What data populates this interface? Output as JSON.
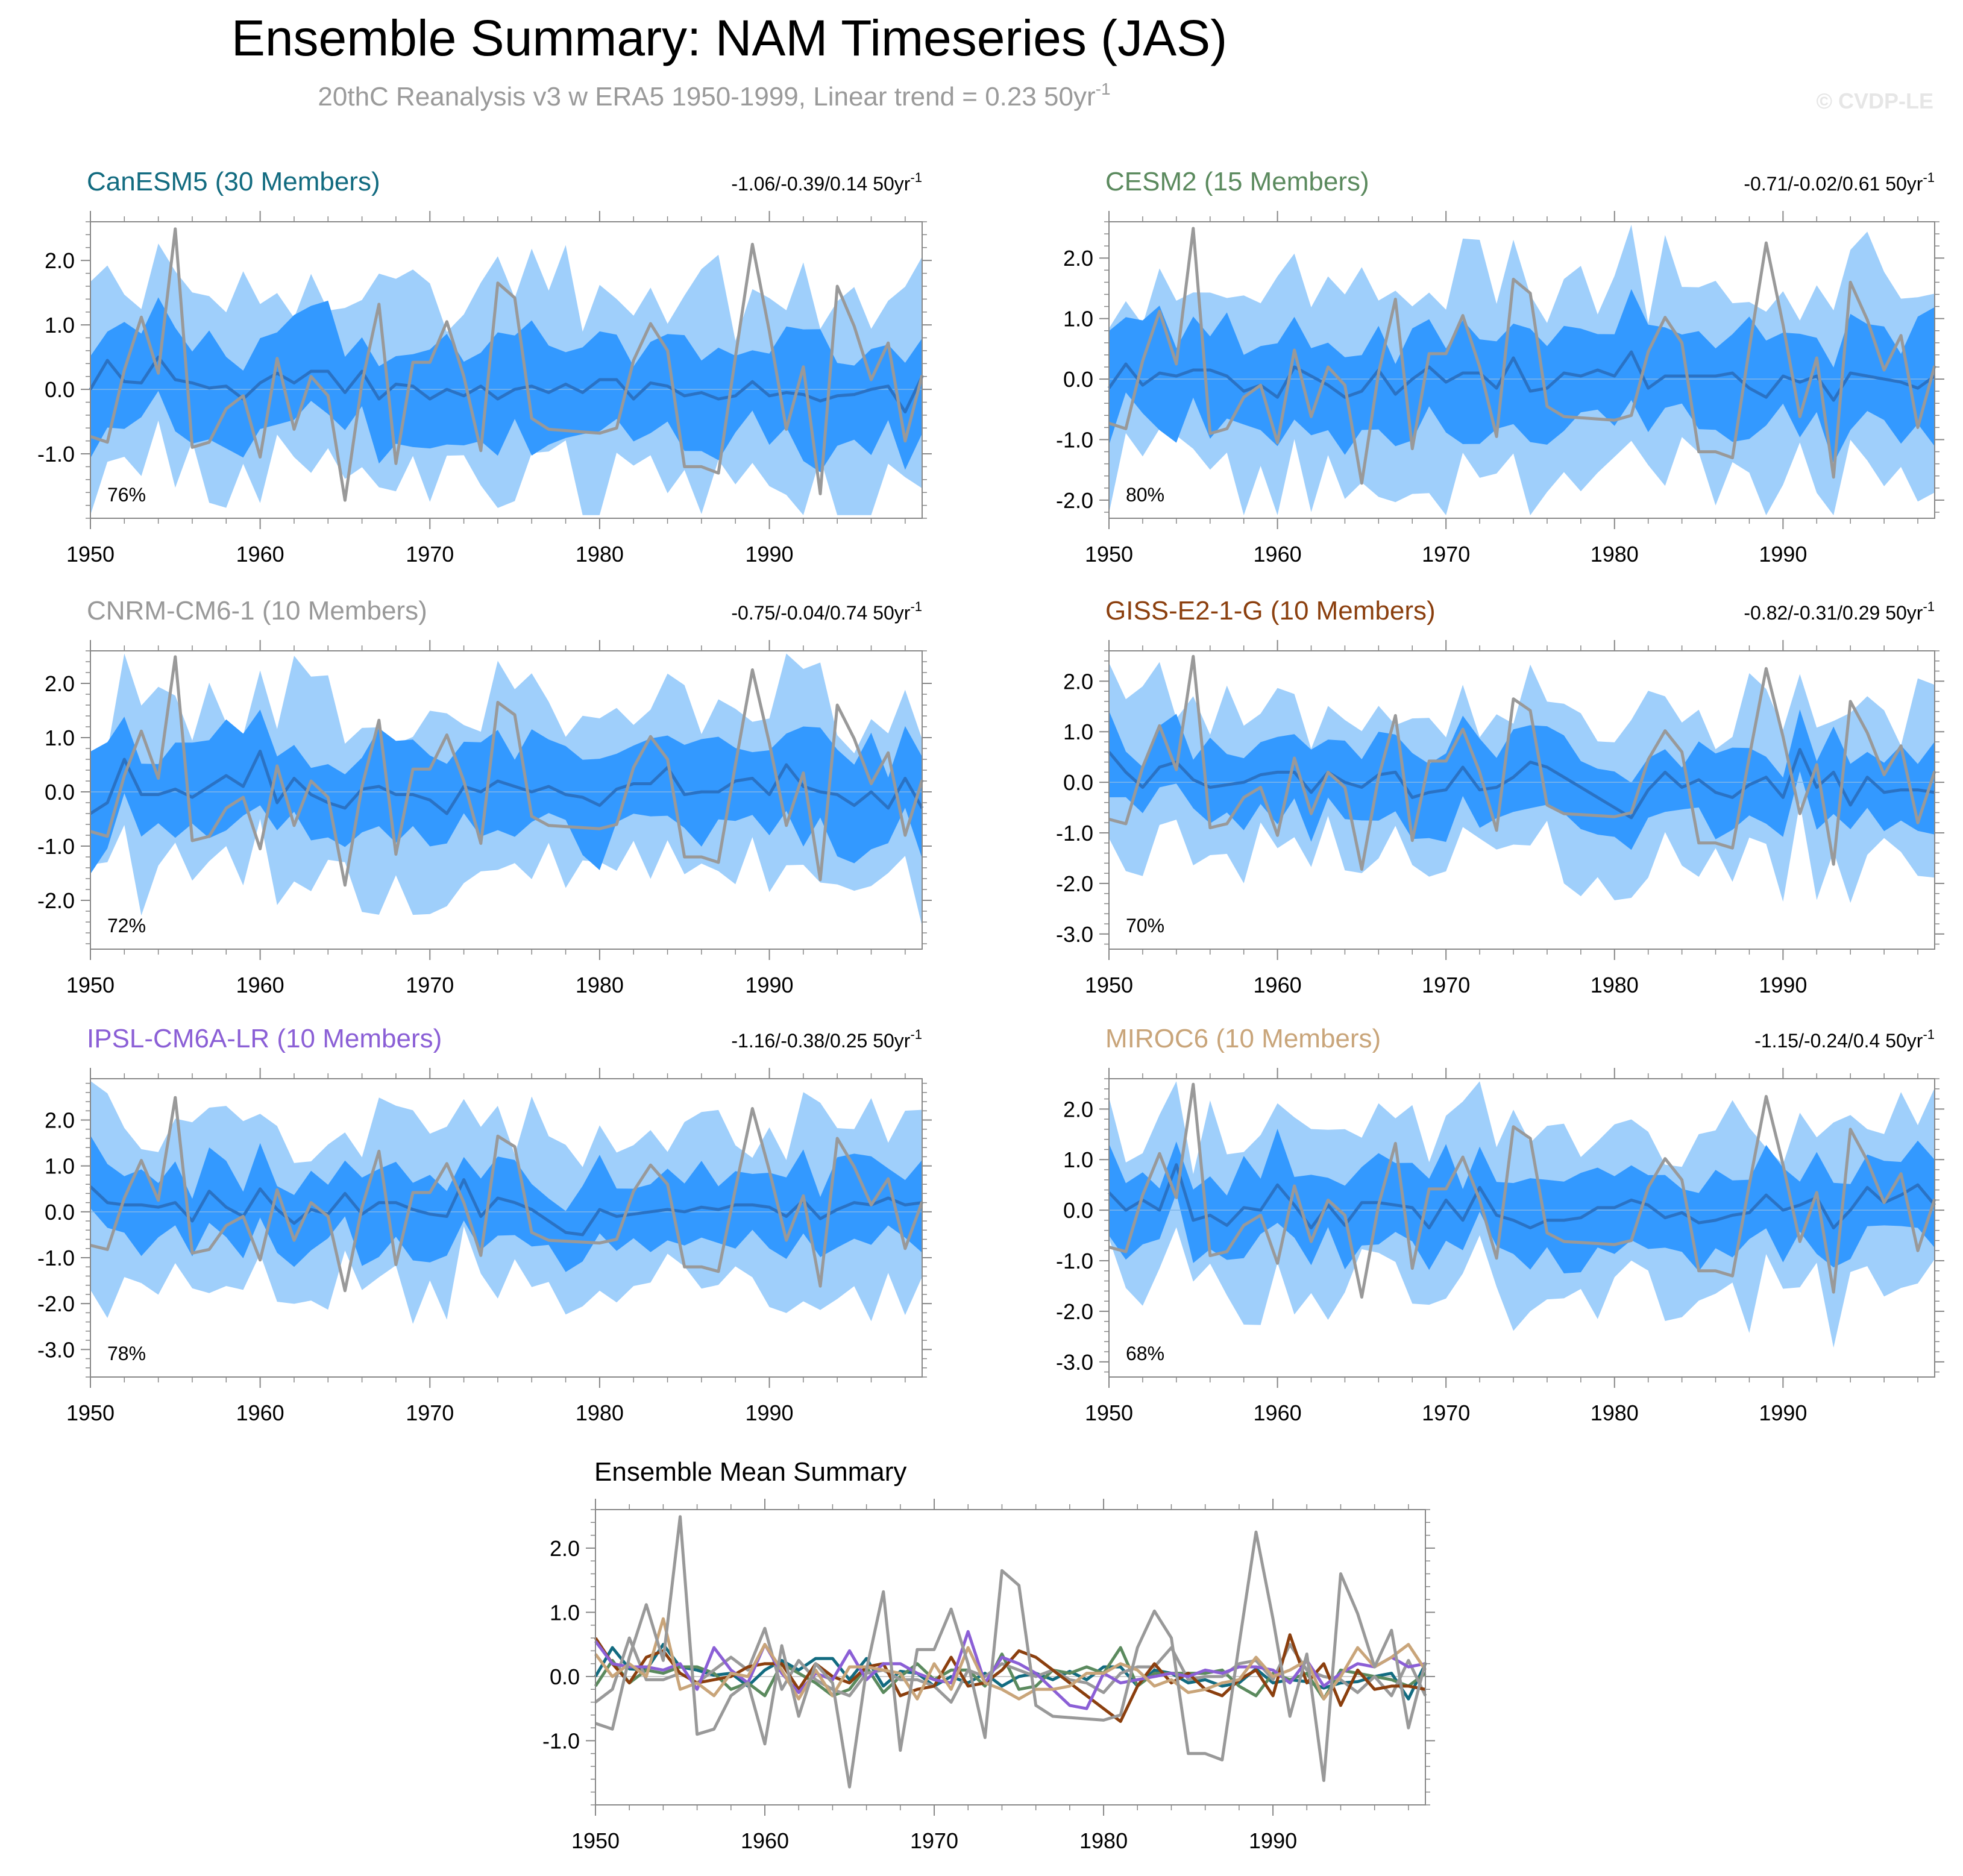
{
  "figure": {
    "title": "Ensemble Summary: NAM Timeseries (JAS)",
    "subtitle": "20thC Reanalysis v3 w ERA5 1950-1999, Linear trend = 0.23 50yr",
    "subtitle_sup": "-1",
    "watermark": "© CVDP-LE"
  },
  "colors": {
    "inner_band": "#3399ff",
    "outer_band": "#9fcffb",
    "ens_mean": "#2a72c4",
    "observed": "#999999",
    "frame": "#888888"
  },
  "observed": [
    -0.73,
    -0.82,
    0.3,
    1.12,
    0.25,
    2.49,
    -0.9,
    -0.82,
    -0.3,
    -0.1,
    -1.05,
    0.48,
    -0.62,
    0.2,
    -0.1,
    -1.72,
    0.1,
    1.32,
    -1.15,
    0.42,
    0.42,
    1.05,
    0.2,
    -0.95,
    1.65,
    1.42,
    -0.45,
    -0.62,
    -0.64,
    -0.66,
    -0.68,
    -0.6,
    0.45,
    1.02,
    0.6,
    -1.2,
    -1.2,
    -1.3,
    0.5,
    2.25,
    0.9,
    -0.62,
    0.35,
    -1.62,
    1.6,
    0.98,
    0.15,
    0.72,
    -0.8,
    0.22
  ],
  "chart_data": [
    {
      "type": "area",
      "model": "CanESM5",
      "title": "CanESM5 (30 Members)",
      "title_color": "#126b80",
      "trend": "-1.06/-0.39/0.14 50yr",
      "trend_sup": "-1",
      "percent": "76%",
      "x_start": 1950,
      "xlim": [
        1950,
        1999
      ],
      "ylim": [
        -2.0,
        2.6
      ],
      "yticks": [
        -1.0,
        0.0,
        1.0,
        2.0
      ],
      "ytick_labels": [
        "-1.0",
        "0.0",
        "1.0",
        "2.0"
      ],
      "xticks": [
        1950,
        1960,
        1970,
        1980,
        1990
      ],
      "ens_mean": [
        0.0,
        0.45,
        0.12,
        0.1,
        0.5,
        0.15,
        0.1,
        0.02,
        0.05,
        -0.15,
        0.1,
        0.25,
        0.1,
        0.28,
        0.28,
        -0.05,
        0.28,
        -0.15,
        0.08,
        0.05,
        -0.15,
        0.0,
        -0.1,
        0.05,
        -0.15,
        0.0,
        0.05,
        -0.05,
        0.08,
        -0.05,
        0.15,
        0.15,
        -0.15,
        0.1,
        0.05,
        -0.1,
        -0.05,
        -0.15,
        -0.1,
        0.12,
        -0.1,
        -0.05,
        -0.08,
        -0.18,
        -0.1,
        -0.08,
        0.0,
        0.05,
        -0.35,
        0.2
      ],
      "inner_spread": 0.7,
      "outer_spread": 1.4,
      "observed": "observed"
    },
    {
      "type": "area",
      "model": "CESM2",
      "title": "CESM2 (15 Members)",
      "title_color": "#5b8a5e",
      "trend": "-0.71/-0.02/0.61 50yr",
      "trend_sup": "-1",
      "percent": "80%",
      "x_start": 1950,
      "xlim": [
        1950,
        1999
      ],
      "ylim": [
        -2.3,
        2.6
      ],
      "yticks": [
        -2.0,
        -1.0,
        0.0,
        1.0,
        2.0
      ],
      "ytick_labels": [
        "-2.0",
        "-1.0",
        "0.0",
        "1.0",
        "2.0"
      ],
      "xticks": [
        1950,
        1960,
        1970,
        1980,
        1990
      ],
      "ens_mean": [
        -0.15,
        0.25,
        -0.1,
        0.1,
        0.05,
        0.15,
        0.15,
        0.05,
        -0.2,
        -0.1,
        -0.3,
        0.2,
        0.05,
        -0.1,
        -0.3,
        -0.2,
        0.15,
        -0.25,
        0.0,
        0.2,
        -0.05,
        0.1,
        0.1,
        -0.15,
        0.35,
        -0.2,
        -0.15,
        0.1,
        0.05,
        0.15,
        0.05,
        0.45,
        -0.15,
        0.05,
        0.05,
        0.05,
        0.05,
        0.1,
        -0.15,
        -0.3,
        0.05,
        -0.05,
        0.05,
        -0.35,
        0.1,
        0.05,
        0.0,
        -0.05,
        -0.15,
        0.05
      ],
      "inner_spread": 0.75,
      "outer_spread": 1.5,
      "observed": "observed"
    },
    {
      "type": "area",
      "model": "CNRM-CM6-1",
      "title": "CNRM-CM6-1 (10 Members)",
      "title_color": "#999999",
      "trend": "-0.75/-0.04/0.74 50yr",
      "trend_sup": "-1",
      "percent": "72%",
      "x_start": 1950,
      "xlim": [
        1950,
        1999
      ],
      "ylim": [
        -2.9,
        2.6
      ],
      "yticks": [
        -2.0,
        -1.0,
        0.0,
        1.0,
        2.0
      ],
      "ytick_labels": [
        "-2.0",
        "-1.0",
        "0.0",
        "1.0",
        "2.0"
      ],
      "xticks": [
        1950,
        1960,
        1970,
        1980,
        1990
      ],
      "ens_mean": [
        -0.4,
        -0.2,
        0.6,
        -0.05,
        -0.05,
        0.05,
        -0.1,
        0.1,
        0.3,
        0.1,
        0.75,
        -0.2,
        0.25,
        -0.05,
        -0.2,
        -0.3,
        0.05,
        0.1,
        -0.05,
        -0.05,
        -0.15,
        -0.4,
        0.1,
        0.0,
        0.2,
        0.1,
        0.0,
        0.1,
        -0.05,
        -0.1,
        -0.25,
        0.05,
        0.15,
        0.15,
        0.45,
        -0.05,
        0.0,
        0.0,
        0.2,
        0.25,
        -0.05,
        0.5,
        0.1,
        0.0,
        -0.05,
        -0.25,
        0.0,
        -0.3,
        0.25,
        -0.3
      ],
      "inner_spread": 0.75,
      "outer_spread": 1.5,
      "observed": "observed"
    },
    {
      "type": "area",
      "model": "GISS-E2-1-G",
      "title": "GISS-E2-1-G (10 Members)",
      "title_color": "#8b3f0e",
      "trend": "-0.82/-0.31/0.29 50yr",
      "trend_sup": "-1",
      "percent": "70%",
      "x_start": 1950,
      "xlim": [
        1950,
        1999
      ],
      "ylim": [
        -3.3,
        2.6
      ],
      "yticks": [
        -3.0,
        -2.0,
        -1.0,
        0.0,
        1.0,
        2.0
      ],
      "ytick_labels": [
        "-3.0",
        "-2.0",
        "-1.0",
        "0.0",
        "1.0",
        "2.0"
      ],
      "xticks": [
        1950,
        1960,
        1970,
        1980,
        1990
      ],
      "ens_mean": [
        0.6,
        0.2,
        -0.1,
        0.3,
        0.4,
        0.05,
        -0.1,
        -0.05,
        0.0,
        0.15,
        0.2,
        0.2,
        -0.2,
        0.2,
        0.0,
        -0.1,
        0.15,
        0.2,
        -0.3,
        -0.2,
        -0.15,
        0.3,
        -0.15,
        -0.1,
        0.1,
        0.4,
        0.3,
        0.1,
        -0.1,
        -0.3,
        -0.5,
        -0.7,
        -0.15,
        0.2,
        -0.1,
        0.05,
        -0.2,
        -0.3,
        -0.05,
        0.1,
        -0.3,
        0.65,
        -0.1,
        0.2,
        -0.45,
        0.1,
        -0.2,
        -0.15,
        -0.15,
        -0.2
      ],
      "inner_spread": 0.65,
      "outer_spread": 1.4,
      "observed": "observed"
    },
    {
      "type": "area",
      "model": "IPSL-CM6A-LR",
      "title": "IPSL-CM6A-LR (10 Members)",
      "title_color": "#8b5fd6",
      "trend": "-1.16/-0.38/0.25 50yr",
      "trend_sup": "-1",
      "percent": "78%",
      "x_start": 1950,
      "xlim": [
        1950,
        1999
      ],
      "ylim": [
        -3.6,
        2.9
      ],
      "yticks": [
        -3.0,
        -2.0,
        -1.0,
        0.0,
        1.0,
        2.0
      ],
      "ytick_labels": [
        "-3.0",
        "-2.0",
        "-1.0",
        "0.0",
        "1.0",
        "2.0"
      ],
      "xticks": [
        1950,
        1960,
        1970,
        1980,
        1990
      ],
      "ens_mean": [
        0.55,
        0.2,
        0.15,
        0.15,
        0.1,
        0.2,
        -0.2,
        0.45,
        0.1,
        -0.1,
        0.5,
        0.05,
        -0.25,
        0.05,
        -0.05,
        0.4,
        -0.05,
        0.2,
        0.2,
        0.05,
        -0.05,
        -0.1,
        0.7,
        -0.1,
        0.3,
        0.2,
        0.05,
        -0.2,
        -0.45,
        -0.5,
        0.05,
        -0.1,
        -0.05,
        0.0,
        0.05,
        0.0,
        0.1,
        0.05,
        0.15,
        0.15,
        0.1,
        -0.1,
        0.25,
        -0.15,
        0.05,
        0.2,
        0.15,
        0.3,
        0.15,
        0.2
      ],
      "inner_spread": 0.75,
      "outer_spread": 1.6,
      "observed": "observed"
    },
    {
      "type": "area",
      "model": "MIROC6",
      "title": "MIROC6 (10 Members)",
      "title_color": "#c9a57a",
      "trend": "-1.15/-0.24/0.4 50yr",
      "trend_sup": "-1",
      "percent": "68%",
      "x_start": 1950,
      "xlim": [
        1950,
        1999
      ],
      "ylim": [
        -3.3,
        2.6
      ],
      "yticks": [
        -3.0,
        -2.0,
        -1.0,
        0.0,
        1.0,
        2.0
      ],
      "ytick_labels": [
        "-3.0",
        "-2.0",
        "-1.0",
        "0.0",
        "1.0",
        "2.0"
      ],
      "xticks": [
        1950,
        1960,
        1970,
        1980,
        1990
      ],
      "ens_mean": [
        0.35,
        0.0,
        0.2,
        0.0,
        0.9,
        -0.2,
        -0.1,
        -0.3,
        0.05,
        0.0,
        0.5,
        0.1,
        -0.35,
        0.1,
        -0.3,
        0.15,
        0.15,
        0.1,
        0.05,
        -0.35,
        0.2,
        -0.2,
        0.45,
        -0.1,
        -0.2,
        -0.35,
        -0.2,
        -0.2,
        -0.15,
        0.05,
        0.05,
        0.2,
        0.1,
        -0.15,
        -0.05,
        -0.25,
        -0.2,
        -0.1,
        -0.05,
        0.3,
        0.0,
        0.1,
        0.25,
        -0.35,
        0.0,
        0.45,
        0.15,
        0.3,
        0.5,
        0.1
      ],
      "inner_spread": 0.7,
      "outer_spread": 1.5,
      "observed": "observed"
    },
    {
      "type": "line",
      "title": "Ensemble Mean Summary",
      "x_start": 1950,
      "xlim": [
        1950,
        1999
      ],
      "ylim": [
        -2.0,
        2.6
      ],
      "yticks": [
        -1.0,
        0.0,
        1.0,
        2.0
      ],
      "ytick_labels": [
        "-1.0",
        "0.0",
        "1.0",
        "2.0"
      ],
      "xticks": [
        1950,
        1960,
        1970,
        1980,
        1990
      ],
      "series_from": [
        "CanESM5",
        "CESM2",
        "CNRM-CM6-1",
        "GISS-E2-1-G",
        "IPSL-CM6A-LR",
        "MIROC6",
        "observed"
      ]
    }
  ]
}
